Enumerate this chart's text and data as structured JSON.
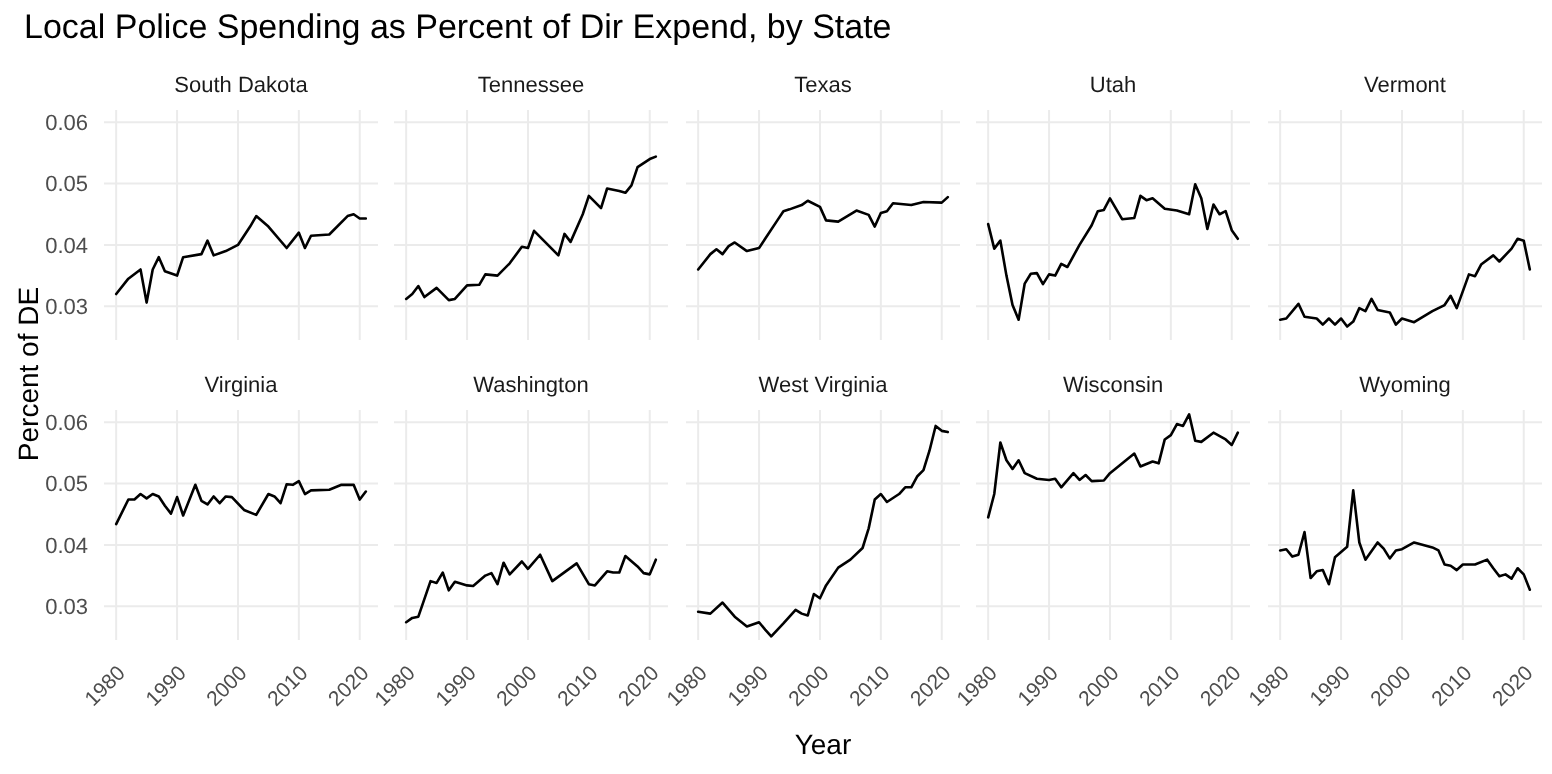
{
  "chart_data": [
    {
      "type": "line",
      "title": "South Dakota",
      "annotations": [
        "Local Police Spending as Percent of Dir Expend, by State"
      ],
      "ylabel": "Percent of DE",
      "xlim": [
        1978,
        2023
      ],
      "ylim": [
        0.0245,
        0.062
      ],
      "xticks": [
        1980,
        1990,
        2000,
        2010,
        2020
      ],
      "yticks": [
        0.03,
        0.04,
        0.05,
        0.06
      ],
      "grid": true,
      "tick_labels": "y",
      "series": [
        {
          "color": "#000000",
          "x": [
            1980,
            1982,
            1984,
            1985,
            1986,
            1987,
            1988,
            1990,
            1991,
            1994,
            1995,
            1996,
            1998,
            2000,
            2002,
            2003,
            2005,
            2008,
            2010,
            2011,
            2012,
            2015,
            2018,
            2019,
            2020,
            2021
          ],
          "values": [
            0.032,
            0.0345,
            0.036,
            0.0306,
            0.036,
            0.038,
            0.0357,
            0.035,
            0.038,
            0.0385,
            0.0407,
            0.0383,
            0.039,
            0.04,
            0.043,
            0.0447,
            0.043,
            0.0395,
            0.042,
            0.0395,
            0.0415,
            0.0417,
            0.0447,
            0.045,
            0.0443,
            0.0443
          ]
        }
      ]
    },
    {
      "type": "line",
      "title": "Tennessee",
      "xlim": [
        1978,
        2023
      ],
      "ylim": [
        0.0245,
        0.062
      ],
      "xticks": [
        1980,
        1990,
        2000,
        2010,
        2020
      ],
      "yticks": [
        0.03,
        0.04,
        0.05,
        0.06
      ],
      "grid": true,
      "tick_labels": false,
      "series": [
        {
          "color": "#000000",
          "x": [
            1980,
            1981,
            1982,
            1983,
            1985,
            1987,
            1988,
            1990,
            1992,
            1993,
            1995,
            1997,
            1999,
            2000,
            2001,
            2005,
            2006,
            2007,
            2009,
            2010,
            2012,
            2013,
            2015,
            2016,
            2017,
            2018,
            2020,
            2021
          ],
          "values": [
            0.0312,
            0.032,
            0.0333,
            0.0315,
            0.033,
            0.031,
            0.0312,
            0.0334,
            0.0335,
            0.0352,
            0.035,
            0.037,
            0.0397,
            0.0395,
            0.0423,
            0.0383,
            0.0418,
            0.0405,
            0.045,
            0.048,
            0.046,
            0.0492,
            0.0488,
            0.0485,
            0.0497,
            0.0527,
            0.054,
            0.0544
          ]
        }
      ]
    },
    {
      "type": "line",
      "title": "Texas",
      "xlim": [
        1978,
        2023
      ],
      "ylim": [
        0.0245,
        0.062
      ],
      "xticks": [
        1980,
        1990,
        2000,
        2010,
        2020
      ],
      "yticks": [
        0.03,
        0.04,
        0.05,
        0.06
      ],
      "grid": true,
      "tick_labels": false,
      "series": [
        {
          "color": "#000000",
          "x": [
            1980,
            1982,
            1983,
            1984,
            1985,
            1986,
            1988,
            1990,
            1991,
            1993,
            1994,
            1995,
            1997,
            1998,
            2000,
            2001,
            2003,
            2006,
            2008,
            2009,
            2010,
            2011,
            2012,
            2015,
            2017,
            2020,
            2021
          ],
          "values": [
            0.036,
            0.0385,
            0.0393,
            0.0385,
            0.0398,
            0.0404,
            0.039,
            0.0395,
            0.041,
            0.044,
            0.0455,
            0.0458,
            0.0465,
            0.0472,
            0.0462,
            0.044,
            0.0438,
            0.0456,
            0.0449,
            0.043,
            0.0452,
            0.0455,
            0.0468,
            0.0465,
            0.047,
            0.0469,
            0.0478
          ]
        }
      ]
    },
    {
      "type": "line",
      "title": "Utah",
      "xlim": [
        1978,
        2023
      ],
      "ylim": [
        0.0245,
        0.062
      ],
      "xticks": [
        1980,
        1990,
        2000,
        2010,
        2020
      ],
      "yticks": [
        0.03,
        0.04,
        0.05,
        0.06
      ],
      "grid": true,
      "tick_labels": false,
      "series": [
        {
          "color": "#000000",
          "x": [
            1980,
            1981,
            1982,
            1983,
            1984,
            1985,
            1986,
            1987,
            1988,
            1989,
            1990,
            1991,
            1992,
            1993,
            1995,
            1997,
            1998,
            1999,
            2000,
            2002,
            2004,
            2005,
            2006,
            2007,
            2009,
            2011,
            2013,
            2014,
            2015,
            2016,
            2017,
            2018,
            2019,
            2020,
            2021
          ],
          "values": [
            0.0434,
            0.0394,
            0.0407,
            0.035,
            0.0302,
            0.0278,
            0.0337,
            0.0353,
            0.0354,
            0.0336,
            0.0352,
            0.035,
            0.0369,
            0.0364,
            0.04,
            0.0432,
            0.0455,
            0.0457,
            0.0476,
            0.0442,
            0.0444,
            0.048,
            0.0473,
            0.0476,
            0.0459,
            0.0456,
            0.045,
            0.0499,
            0.0476,
            0.0426,
            0.0466,
            0.045,
            0.0455,
            0.0424,
            0.041
          ]
        }
      ]
    },
    {
      "type": "line",
      "title": "Vermont",
      "xlim": [
        1978,
        2023
      ],
      "ylim": [
        0.0245,
        0.062
      ],
      "xticks": [
        1980,
        1990,
        2000,
        2010,
        2020
      ],
      "yticks": [
        0.03,
        0.04,
        0.05,
        0.06
      ],
      "grid": true,
      "tick_labels": false,
      "series": [
        {
          "color": "#000000",
          "x": [
            1980,
            1981,
            1983,
            1984,
            1986,
            1987,
            1988,
            1989,
            1990,
            1991,
            1992,
            1993,
            1994,
            1995,
            1996,
            1998,
            1999,
            2000,
            2002,
            2005,
            2007,
            2008,
            2009,
            2011,
            2012,
            2013,
            2015,
            2016,
            2018,
            2019,
            2020,
            2021
          ],
          "values": [
            0.0278,
            0.028,
            0.0304,
            0.0283,
            0.028,
            0.027,
            0.028,
            0.027,
            0.028,
            0.0267,
            0.0275,
            0.0297,
            0.0292,
            0.0312,
            0.0294,
            0.029,
            0.027,
            0.028,
            0.0274,
            0.0292,
            0.0302,
            0.0317,
            0.0297,
            0.0352,
            0.0349,
            0.0368,
            0.0383,
            0.0373,
            0.0394,
            0.041,
            0.0407,
            0.036
          ]
        }
      ]
    },
    {
      "type": "line",
      "title": "Virginia",
      "xlim": [
        1978,
        2023
      ],
      "ylim": [
        0.0245,
        0.062
      ],
      "xticks": [
        1980,
        1990,
        2000,
        2010,
        2020
      ],
      "yticks": [
        0.03,
        0.04,
        0.05,
        0.06
      ],
      "grid": true,
      "series": [
        {
          "color": "#000000",
          "x": [
            1980,
            1982,
            1983,
            1984,
            1985,
            1986,
            1987,
            1988,
            1989,
            1990,
            1991,
            1993,
            1994,
            1995,
            1996,
            1997,
            1998,
            1999,
            2001,
            2003,
            2005,
            2006,
            2007,
            2008,
            2009,
            2010,
            2011,
            2012,
            2015,
            2017,
            2019,
            2020,
            2021
          ],
          "values": [
            0.0434,
            0.0474,
            0.0474,
            0.0483,
            0.0476,
            0.0483,
            0.0479,
            0.0464,
            0.0451,
            0.0478,
            0.0448,
            0.0498,
            0.0472,
            0.0466,
            0.0479,
            0.0468,
            0.0479,
            0.0478,
            0.0457,
            0.0449,
            0.0483,
            0.0479,
            0.0468,
            0.0499,
            0.0498,
            0.0504,
            0.0483,
            0.0489,
            0.049,
            0.0498,
            0.0498,
            0.0474,
            0.0487
          ]
        }
      ]
    },
    {
      "type": "line",
      "title": "Washington",
      "xlim": [
        1978,
        2023
      ],
      "ylim": [
        0.0245,
        0.062
      ],
      "xticks": [
        1980,
        1990,
        2000,
        2010,
        2020
      ],
      "yticks": [
        0.03,
        0.04,
        0.05,
        0.06
      ],
      "grid": true,
      "tick_labels": "x",
      "series": [
        {
          "color": "#000000",
          "x": [
            1980,
            1981,
            1982,
            1984,
            1985,
            1986,
            1987,
            1988,
            1990,
            1991,
            1993,
            1994,
            1995,
            1996,
            1997,
            1999,
            2000,
            2002,
            2004,
            2008,
            2010,
            2011,
            2013,
            2014,
            2015,
            2016,
            2018,
            2019,
            2020,
            2021
          ],
          "values": [
            0.0274,
            0.0281,
            0.0283,
            0.0341,
            0.0338,
            0.0355,
            0.0326,
            0.034,
            0.0334,
            0.0333,
            0.035,
            0.0354,
            0.0336,
            0.0371,
            0.0352,
            0.0373,
            0.0361,
            0.0384,
            0.0341,
            0.037,
            0.0336,
            0.0334,
            0.0357,
            0.0355,
            0.0355,
            0.0382,
            0.0365,
            0.0354,
            0.0352,
            0.0376
          ]
        }
      ]
    },
    {
      "type": "line",
      "title": "West Virginia",
      "xlabel": "Year",
      "xlim": [
        1978,
        2023
      ],
      "ylim": [
        0.0245,
        0.062
      ],
      "xticks": [
        1980,
        1990,
        2000,
        2010,
        2020
      ],
      "yticks": [
        0.03,
        0.04,
        0.05,
        0.06
      ],
      "grid": true,
      "tick_labels": "x",
      "series": [
        {
          "color": "#000000",
          "x": [
            1980,
            1982,
            1984,
            1986,
            1988,
            1990,
            1991,
            1992,
            1994,
            1996,
            1997,
            1998,
            1999,
            2000,
            2001,
            2003,
            2005,
            2007,
            2008,
            2009,
            2010,
            2011,
            2013,
            2014,
            2015,
            2016,
            2017,
            2018,
            2019,
            2020,
            2021
          ],
          "values": [
            0.0291,
            0.0288,
            0.0306,
            0.0283,
            0.0267,
            0.0274,
            0.0262,
            0.0251,
            0.0272,
            0.0294,
            0.0288,
            0.0285,
            0.032,
            0.0313,
            0.0334,
            0.0363,
            0.0376,
            0.0395,
            0.0427,
            0.0474,
            0.0483,
            0.047,
            0.0483,
            0.0494,
            0.0494,
            0.0512,
            0.0522,
            0.0554,
            0.0594,
            0.0586,
            0.0584
          ]
        }
      ]
    },
    {
      "type": "line",
      "title": "Wisconsin",
      "xlim": [
        1978,
        2023
      ],
      "ylim": [
        0.0245,
        0.062
      ],
      "xticks": [
        1980,
        1990,
        2000,
        2010,
        2020
      ],
      "yticks": [
        0.03,
        0.04,
        0.05,
        0.06
      ],
      "grid": true,
      "tick_labels": "x",
      "series": [
        {
          "color": "#000000",
          "x": [
            1980,
            1981,
            1982,
            1983,
            1984,
            1985,
            1986,
            1988,
            1990,
            1991,
            1992,
            1994,
            1995,
            1996,
            1997,
            1999,
            2000,
            2004,
            2005,
            2007,
            2008,
            2009,
            2010,
            2011,
            2012,
            2013,
            2014,
            2015,
            2017,
            2019,
            2020,
            2021
          ],
          "values": [
            0.0445,
            0.0483,
            0.0567,
            0.0538,
            0.0524,
            0.0538,
            0.0517,
            0.0508,
            0.0506,
            0.0508,
            0.0494,
            0.0517,
            0.0506,
            0.0514,
            0.0504,
            0.0505,
            0.0517,
            0.0549,
            0.0528,
            0.0536,
            0.0533,
            0.0572,
            0.0579,
            0.0597,
            0.0594,
            0.0613,
            0.057,
            0.0568,
            0.0583,
            0.0572,
            0.0563,
            0.0583
          ]
        }
      ]
    },
    {
      "type": "line",
      "title": "Wyoming",
      "xlim": [
        1978,
        2023
      ],
      "ylim": [
        0.0245,
        0.062
      ],
      "xticks": [
        1980,
        1990,
        2000,
        2010,
        2020
      ],
      "yticks": [
        0.03,
        0.04,
        0.05,
        0.06
      ],
      "grid": true,
      "tick_labels": "x",
      "series": [
        {
          "color": "#000000",
          "x": [
            1980,
            1981,
            1982,
            1983,
            1984,
            1985,
            1986,
            1987,
            1988,
            1989,
            1991,
            1992,
            1993,
            1994,
            1996,
            1997,
            1998,
            1999,
            2000,
            2002,
            2005,
            2006,
            2007,
            2008,
            2009,
            2010,
            2012,
            2014,
            2015,
            2016,
            2017,
            2018,
            2019,
            2020,
            2021
          ],
          "values": [
            0.0391,
            0.0393,
            0.0381,
            0.0384,
            0.0421,
            0.0346,
            0.0357,
            0.0359,
            0.0336,
            0.038,
            0.0397,
            0.0489,
            0.0404,
            0.0376,
            0.0404,
            0.0394,
            0.0378,
            0.0391,
            0.0393,
            0.0404,
            0.0396,
            0.0391,
            0.0368,
            0.0366,
            0.0359,
            0.0368,
            0.0368,
            0.0376,
            0.0362,
            0.0349,
            0.0352,
            0.0345,
            0.0362,
            0.0352,
            0.0327
          ]
        }
      ]
    }
  ]
}
